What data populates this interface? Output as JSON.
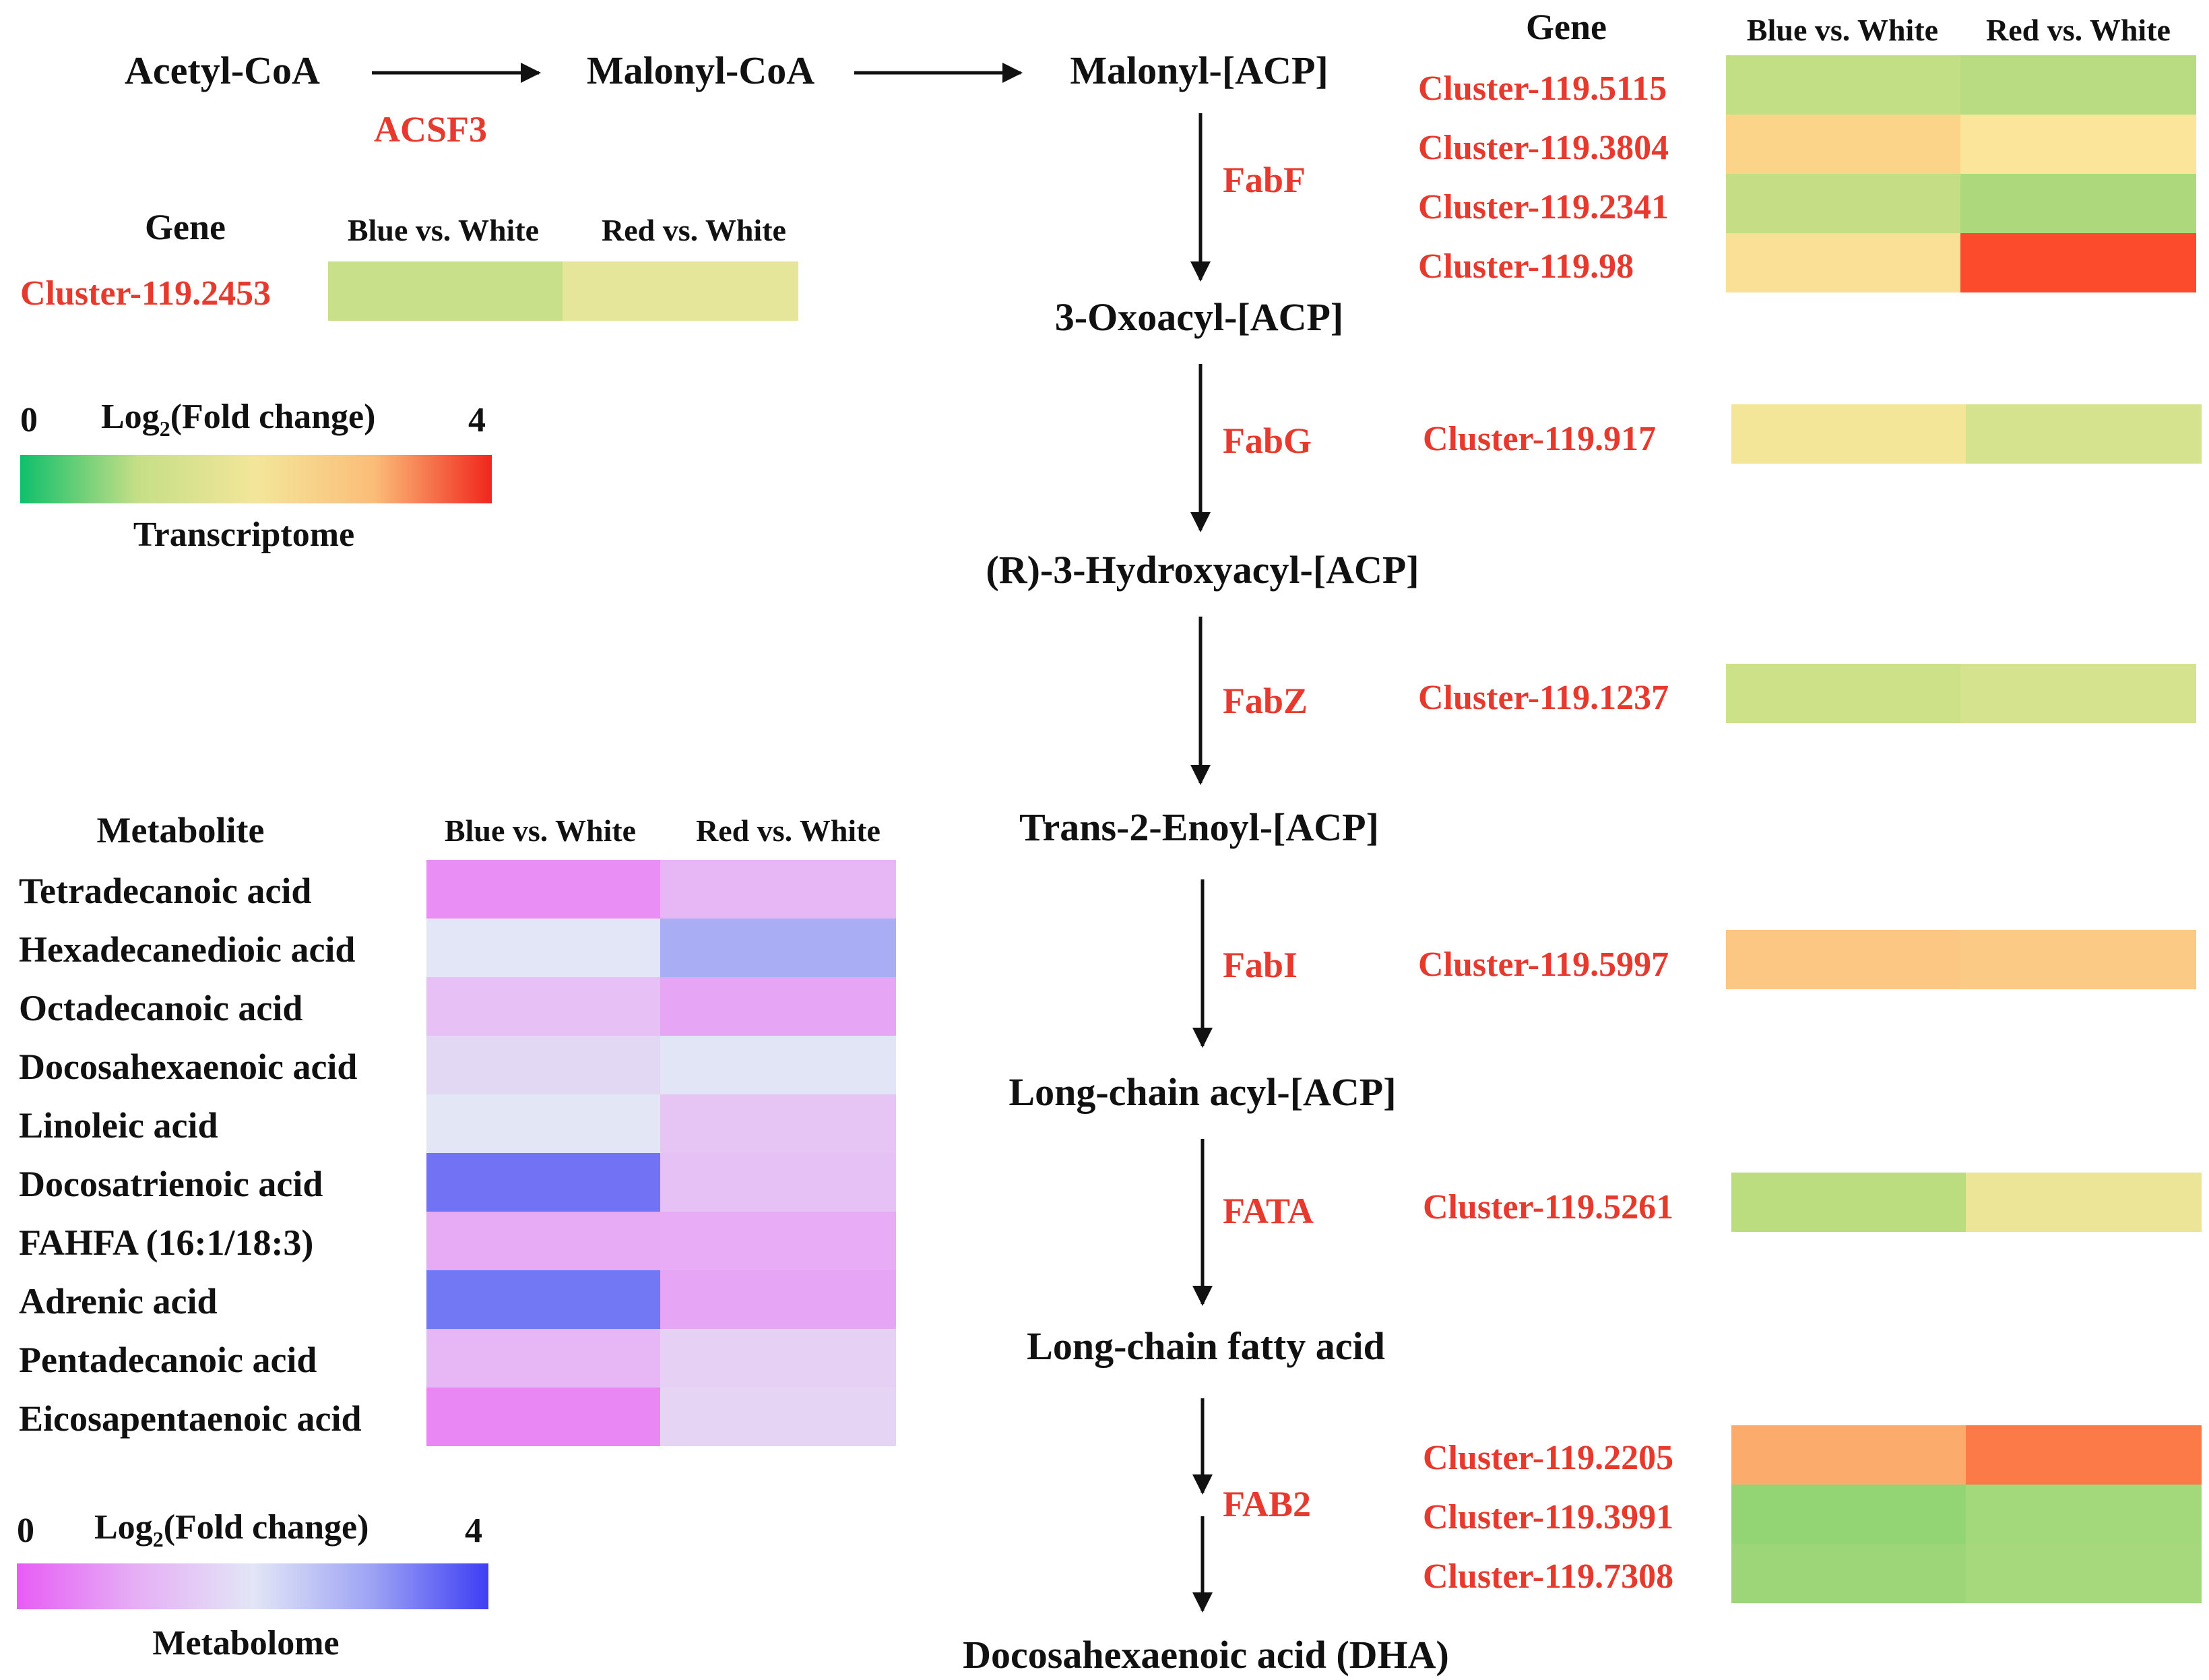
{
  "pathway": {
    "compounds": [
      "Acetyl-CoA",
      "Malonyl-CoA",
      "Malonyl-[ACP]",
      "3-Oxoacyl-[ACP]",
      "(R)-3-Hydroxyacyl-[ACP]",
      "Trans-2-Enoyl-[ACP]",
      "Long-chain acyl-[ACP]",
      "Long-chain fatty acid",
      "Docosahexaenoic acid (DHA)"
    ],
    "enzymes": [
      "ACSF3",
      "FabF",
      "FabG",
      "FabZ",
      "FabI",
      "FATA",
      "FAB2"
    ]
  },
  "transcriptome": {
    "gene_header": "Gene",
    "comparisons": [
      "Blue vs. White",
      "Red vs. White"
    ],
    "legend": {
      "min": "0",
      "max": "4",
      "label_prefix": "Log",
      "label_sub": "2",
      "label_suffix": "(Fold change)",
      "caption": "Transcriptome"
    },
    "groups": [
      {
        "enzyme": "ACSF3",
        "rows": [
          {
            "gene": "Cluster-119.2453",
            "colors": [
              "#c8e08a",
              "#e6e69a"
            ]
          }
        ]
      },
      {
        "enzyme": "FabF",
        "rows": [
          {
            "gene": "Cluster-119.5115",
            "colors": [
              "#c2df86",
              "#b9dc82"
            ]
          },
          {
            "gene": "Cluster-119.3804",
            "colors": [
              "#fbd48a",
              "#fae59a"
            ]
          },
          {
            "gene": "Cluster-119.2341",
            "colors": [
              "#c5de86",
              "#aed87c"
            ]
          },
          {
            "gene": "Cluster-119.98",
            "colors": [
              "#fadf96",
              "#fb4a2c"
            ]
          }
        ]
      },
      {
        "enzyme": "FabG",
        "rows": [
          {
            "gene": "Cluster-119.917",
            "colors": [
              "#f3e698",
              "#d6e38e"
            ]
          }
        ]
      },
      {
        "enzyme": "FabZ",
        "rows": [
          {
            "gene": "Cluster-119.1237",
            "colors": [
              "#cde189",
              "#d6e38e"
            ]
          }
        ]
      },
      {
        "enzyme": "FabI",
        "rows": [
          {
            "gene": "Cluster-119.5997",
            "colors": [
              "#fbc782",
              "#fbca85"
            ]
          }
        ]
      },
      {
        "enzyme": "FATA",
        "rows": [
          {
            "gene": "Cluster-119.5261",
            "colors": [
              "#bcdc80",
              "#ece597"
            ]
          }
        ]
      },
      {
        "enzyme": "FAB2",
        "rows": [
          {
            "gene": "Cluster-119.2205",
            "colors": [
              "#fbac6c",
              "#fc7a48"
            ]
          },
          {
            "gene": "Cluster-119.3991",
            "colors": [
              "#93d474",
              "#a3d87b"
            ]
          },
          {
            "gene": "Cluster-119.7308",
            "colors": [
              "#9cd678",
              "#a5d97b"
            ]
          }
        ]
      }
    ]
  },
  "metabolome": {
    "header": "Metabolite",
    "comparisons": [
      "Blue vs. White",
      "Red vs. White"
    ],
    "legend": {
      "min": "0",
      "max": "4",
      "label_prefix": "Log",
      "label_sub": "2",
      "label_suffix": "(Fold change)",
      "caption": "Metabolome"
    },
    "rows": [
      {
        "name": "Tetradecanoic acid",
        "colors": [
          "#e98ef5",
          "#e6b6f5"
        ]
      },
      {
        "name": "Hexadecanedioic acid",
        "colors": [
          "#e2e6f6",
          "#a8adf4"
        ]
      },
      {
        "name": "Octadecanoic acid",
        "colors": [
          "#e7c1f5",
          "#e6a5f5"
        ]
      },
      {
        "name": "Docosahexaenoic acid",
        "colors": [
          "#e2d8f4",
          "#e2e5f6"
        ]
      },
      {
        "name": "Linoleic acid",
        "colors": [
          "#e2e6f5",
          "#e6c5f5"
        ]
      },
      {
        "name": "Docosatrienoic acid",
        "colors": [
          "#7273f4",
          "#e6c1f5"
        ]
      },
      {
        "name": "FAHFA (16:1/18:3)",
        "colors": [
          "#e7abf5",
          "#e7acf5"
        ]
      },
      {
        "name": "Adrenic acid",
        "colors": [
          "#7277f4",
          "#e6a5f5"
        ]
      },
      {
        "name": "Pentadecanoic acid",
        "colors": [
          "#e6b6f5",
          "#e6d1f5"
        ]
      },
      {
        "name": "Eicosapentaenoic acid",
        "colors": [
          "#e988f5",
          "#e6d4f5"
        ]
      }
    ]
  },
  "colors": {
    "label_red": "#e63a2e",
    "text": "#111111",
    "transcriptome_scale": [
      "#0fbf6b",
      "#c6df86",
      "#f3e69a",
      "#fbbd78",
      "#f0261c"
    ],
    "metabolome_scale": [
      "#e75cf5",
      "#e6aef5",
      "#e2e6f6",
      "#9ea4f4",
      "#3e3ff3"
    ]
  }
}
